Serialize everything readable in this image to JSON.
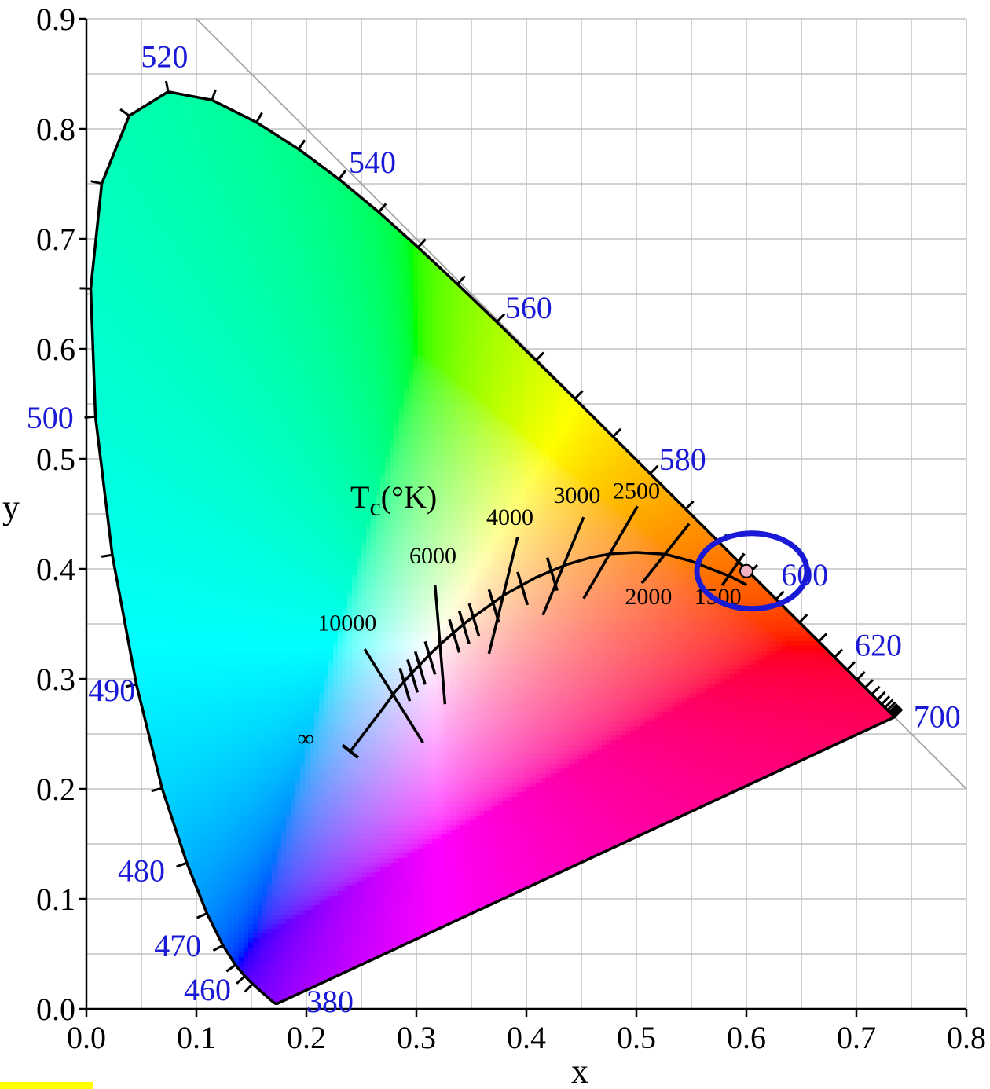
{
  "chart_data": {
    "type": "scatter",
    "title": "",
    "xlabel": "x",
    "ylabel": "y",
    "xlim": [
      0.0,
      0.8
    ],
    "ylim": [
      0.0,
      0.9
    ],
    "grid": true,
    "x_ticks": [
      "0.0",
      "0.1",
      "0.2",
      "0.3",
      "0.4",
      "0.5",
      "0.6",
      "0.7",
      "0.8"
    ],
    "y_ticks": [
      "0.0",
      "0.1",
      "0.2",
      "0.3",
      "0.4",
      "0.5",
      "0.6",
      "0.7",
      "0.8",
      "0.9"
    ],
    "spectral_locus_labels": [
      {
        "label": "380",
        "x": 0.1741,
        "y": 0.005
      },
      {
        "label": "460",
        "x": 0.144,
        "y": 0.0297
      },
      {
        "label": "470",
        "x": 0.1241,
        "y": 0.0578
      },
      {
        "label": "480",
        "x": 0.0913,
        "y": 0.1327
      },
      {
        "label": "490",
        "x": 0.0454,
        "y": 0.295
      },
      {
        "label": "500",
        "x": 0.0082,
        "y": 0.5384
      },
      {
        "label": "520",
        "x": 0.0743,
        "y": 0.8338
      },
      {
        "label": "540",
        "x": 0.2296,
        "y": 0.7543
      },
      {
        "label": "560",
        "x": 0.3731,
        "y": 0.6245
      },
      {
        "label": "580",
        "x": 0.5125,
        "y": 0.4866
      },
      {
        "label": "600",
        "x": 0.627,
        "y": 0.3725
      },
      {
        "label": "620",
        "x": 0.6915,
        "y": 0.3083
      },
      {
        "label": "700",
        "x": 0.7347,
        "y": 0.2653
      }
    ],
    "planckian_locus_label": "T",
    "planckian_locus_subscript": "c",
    "planckian_locus_unit": "(°K)",
    "planckian_locus": [
      {
        "label": "∞",
        "x": 0.2399,
        "y": 0.2341
      },
      {
        "label": "10000",
        "x": 0.2807,
        "y": 0.2884
      },
      {
        "label": "6000",
        "x": 0.3221,
        "y": 0.3318
      },
      {
        "label": "4000",
        "x": 0.3805,
        "y": 0.3768
      },
      {
        "label": "3000",
        "x": 0.4369,
        "y": 0.4041
      },
      {
        "label": "2500",
        "x": 0.4769,
        "y": 0.4137
      },
      {
        "label": "2000",
        "x": 0.5267,
        "y": 0.4133
      },
      {
        "label": "1500",
        "x": 0.5857,
        "y": 0.3931
      }
    ],
    "highlighted_point": {
      "x": 0.6,
      "y": 0.398
    }
  },
  "colors": {
    "wavelength_label": "#1a1ad6",
    "highlight_ellipse": "#1a1ad6",
    "highlight_point": "#f2b3c4",
    "grid": "#b4b4b4",
    "footer_bar": "#ffff00"
  }
}
